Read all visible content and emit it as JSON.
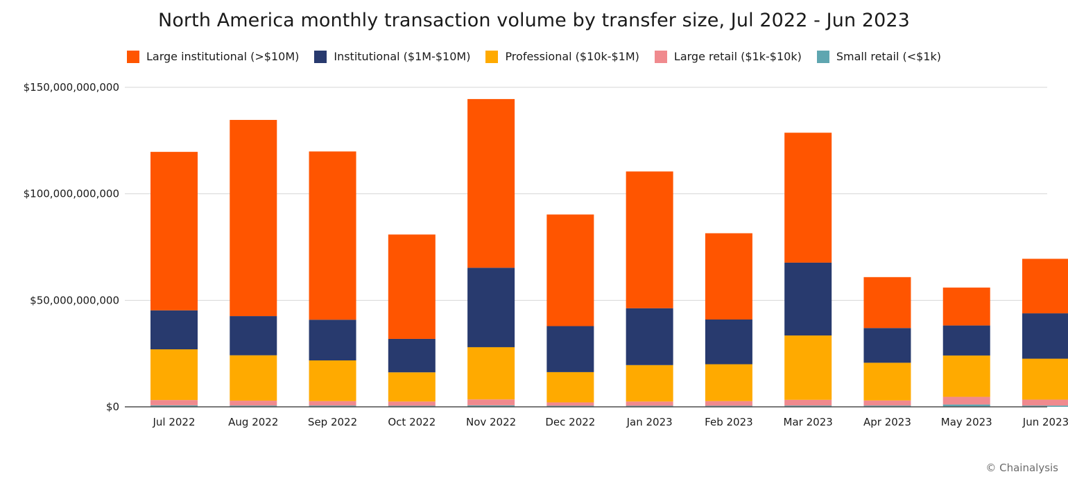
{
  "colors": {
    "large_institutional": "#ff5500",
    "institutional": "#283a6e",
    "professional": "#ffaa00",
    "large_retail": "#f08a8e",
    "small_retail": "#5fa6b0",
    "grid": "#d6d6d6",
    "axis": "#4d4d4d"
  },
  "credit": "© Chainalysis",
  "chart_data": {
    "type": "bar",
    "stacked": true,
    "title": "North America monthly transaction volume by transfer size, Jul 2022 - Jun 2023",
    "xlabel": "",
    "ylabel": "",
    "ylim": [
      0,
      150000000000
    ],
    "yticks": [
      0,
      50000000000,
      100000000000,
      150000000000
    ],
    "ytick_labels": [
      "$0",
      "$50,000,000,000",
      "$100,000,000,000",
      "$150,000,000,000"
    ],
    "grid": true,
    "legend_position": "top",
    "categories": [
      "Jul 2022",
      "Aug 2022",
      "Sep 2022",
      "Oct 2022",
      "Nov 2022",
      "Dec 2022",
      "Jan 2023",
      "Feb 2023",
      "Mar 2023",
      "Apr 2023",
      "May 2023",
      "Jun 2023"
    ],
    "series": [
      {
        "name": "Small retail (<$1k)",
        "key": "small_retail",
        "values": [
          700000000,
          600000000,
          600000000,
          500000000,
          700000000,
          500000000,
          500000000,
          500000000,
          600000000,
          600000000,
          1100000000,
          600000000
        ]
      },
      {
        "name": "Large retail ($1k-$10k)",
        "key": "large_retail",
        "values": [
          2500000000,
          2300000000,
          2100000000,
          2000000000,
          2800000000,
          1600000000,
          2000000000,
          2200000000,
          2700000000,
          2400000000,
          3600000000,
          2800000000
        ]
      },
      {
        "name": "Professional ($10k-$1M)",
        "key": "professional",
        "values": [
          23800000000,
          21300000000,
          19100000000,
          13700000000,
          24500000000,
          14200000000,
          17100000000,
          17300000000,
          30200000000,
          17700000000,
          19400000000,
          19200000000
        ]
      },
      {
        "name": "Institutional ($1M-$10M)",
        "key": "institutional",
        "values": [
          18300000000,
          18400000000,
          19100000000,
          15700000000,
          37300000000,
          21600000000,
          26700000000,
          21000000000,
          34200000000,
          16300000000,
          14100000000,
          21300000000
        ]
      },
      {
        "name": "Large institutional (>$10M)",
        "key": "large_institutional",
        "values": [
          74400000000,
          92100000000,
          79000000000,
          49000000000,
          79200000000,
          52400000000,
          64200000000,
          40500000000,
          61000000000,
          23900000000,
          17800000000,
          25600000000
        ]
      }
    ],
    "legend_order": [
      "large_institutional",
      "institutional",
      "professional",
      "large_retail",
      "small_retail"
    ]
  }
}
